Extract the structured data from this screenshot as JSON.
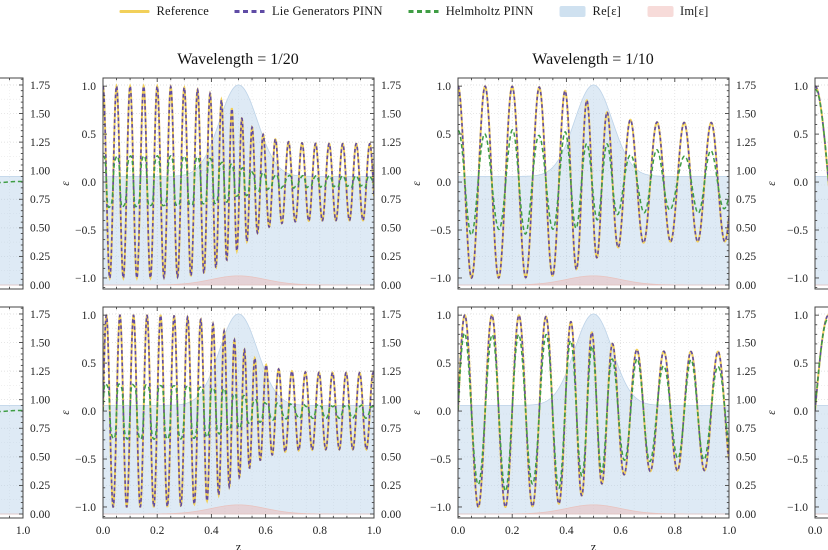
{
  "colors": {
    "reference": "#f2d05a",
    "lie_pinn": "#5f4ba5",
    "helmholtz_pinn": "#3f9d44",
    "re_eps_fill": "#a8c8e4",
    "im_eps_fill": "#eeb0ab",
    "re_eps_edge": "#bdd3e8",
    "im_eps_edge": "#e8c4c0",
    "grid_major": "#d9d9d9",
    "grid_minor": "#ebebeb",
    "spine": "#444444",
    "text": "#1a1a1a"
  },
  "legend": {
    "items": [
      {
        "name": "reference",
        "label": "Reference",
        "swatch": "solid-line",
        "color": "#f2d05a"
      },
      {
        "name": "lie-generators-pinn",
        "label": "Lie Generators PINN",
        "swatch": "dashed-line",
        "color": "#5f4ba5"
      },
      {
        "name": "helmholtz-pinn",
        "label": "Helmholtz PINN",
        "swatch": "dashed-line",
        "color": "#3f9d44"
      },
      {
        "name": "re-eps",
        "label": "Re[ε]",
        "swatch": "patch",
        "color": "rgba(168,200,228,0.55)"
      },
      {
        "name": "im-eps",
        "label": "Im[ε]",
        "swatch": "patch",
        "color": "rgba(238,176,171,0.45)"
      }
    ]
  },
  "chart_data": {
    "type": "line",
    "description": "2-row by 4-column grid of wave propagation subplots (outer columns cropped at image edges). Each subplot: reference wave (solid yellow), Lie Generators PINN (purple dashed, overlapping reference), Helmholtz PINN (green dashed), with shaded permittivity profiles Re[eps] (light blue) and Im[eps] (light pink) on a secondary axis.",
    "titles": [
      "Wavelength = 1/20",
      "Wavelength = 1/10"
    ],
    "xlabel": "z",
    "ylabel_right": "ε",
    "x_axis": {
      "range": [
        0,
        1
      ],
      "tick_values": [
        0.0,
        0.2,
        0.4,
        0.6,
        0.8,
        1.0
      ],
      "tick_labels": [
        "0.0",
        "0.2",
        "0.4",
        "0.6",
        "0.8",
        "1.0"
      ],
      "minor_step": 0.05
    },
    "u_axis": {
      "range": [
        -1.115,
        1.085
      ],
      "tick_values": [
        1.0,
        0.5,
        0.0,
        -0.5,
        -1.0
      ],
      "tick_labels": [
        "1.0",
        "0.5",
        "0.0",
        "−0.5",
        "−1.0"
      ],
      "minor_step": 0.1
    },
    "eps_axis": {
      "range": [
        -0.035,
        1.811
      ],
      "tick_values": [
        0.0,
        0.25,
        0.5,
        0.75,
        1.0,
        1.25,
        1.5,
        1.75
      ],
      "tick_labels": [
        "0.00",
        "0.25",
        "0.50",
        "0.75",
        "1.00",
        "1.25",
        "1.50",
        "1.75"
      ],
      "minor_tick_step": 0.05,
      "minor_grid_step": 0.125
    },
    "epsilon_profile": {
      "re_baseline": 0.95,
      "re_peak": 1.75,
      "center": 0.5,
      "sigma": 0.07,
      "im_peak": 0.08,
      "im_sigma": 0.1
    },
    "transition": {
      "center": 0.5,
      "width": 0.055
    },
    "rows": [
      {
        "phase": "cos"
      },
      {
        "phase": "sin"
      }
    ],
    "columns": [
      {
        "name": "col-1",
        "title": "",
        "wavelength": 0.025,
        "show_ref": false,
        "rows": [
          {
            "ref_amp": [
              1.0,
              0.4
            ],
            "helm_flat": 0.0
          },
          {
            "ref_amp": [
              1.0,
              0.4
            ],
            "helm_flat": 0.0
          }
        ]
      },
      {
        "name": "col-2",
        "title": "Wavelength = 1/20",
        "wavelength": 0.05,
        "show_ref": true,
        "rows": [
          {
            "ref_amp": [
              1.0,
              0.4
            ],
            "helm_amp": [
              0.26,
              0.05
            ],
            "helm_mode": "clipped"
          },
          {
            "ref_amp": [
              1.0,
              0.4
            ],
            "helm_amp": [
              0.28,
              0.06
            ],
            "helm_mode": "clipped"
          }
        ]
      },
      {
        "name": "col-3",
        "title": "Wavelength = 1/10",
        "wavelength": 0.1,
        "show_ref": true,
        "rows": [
          {
            "ref_amp": [
              1.0,
              0.62
            ],
            "helm_amp": [
              0.52,
              0.3
            ],
            "helm_mode": "track"
          },
          {
            "ref_amp": [
              1.0,
              0.62
            ],
            "helm_amp": [
              0.8,
              0.5
            ],
            "helm_mode": "track"
          }
        ]
      },
      {
        "name": "col-4",
        "title": "",
        "wavelength": 0.2,
        "show_ref": true,
        "rows": [
          {
            "ref_amp": [
              1.0,
              0.7
            ],
            "helm_amp": [
              0.95,
              0.6
            ],
            "helm_mode": "track"
          },
          {
            "ref_amp": [
              1.0,
              0.7
            ],
            "helm_amp": [
              0.95,
              0.6
            ],
            "helm_mode": "track"
          }
        ]
      }
    ],
    "legend_entries": [
      "Reference",
      "Lie Generators PINN",
      "Helmholtz PINN",
      "Re[ε]",
      "Im[ε]"
    ]
  }
}
